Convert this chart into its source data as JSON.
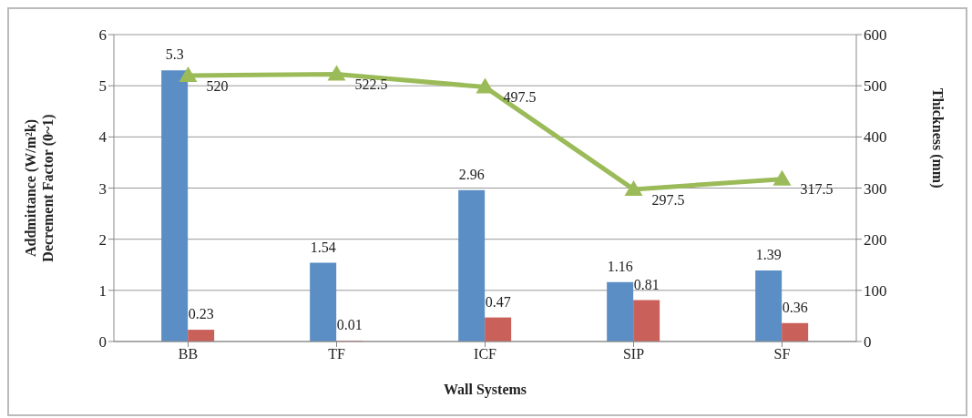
{
  "chart_data": {
    "type": "bar",
    "xlabel": "Wall Systems",
    "ylabel": "Addmittance (W/m²k)\nDecrement Factor (0~1)",
    "y2label": "Thickness (mm)",
    "categories": [
      "BB",
      "TF",
      "ICF",
      "SIP",
      "SF"
    ],
    "series": [
      {
        "color": "#5b8ec4",
        "values": [
          5.3,
          1.54,
          2.96,
          1.16,
          1.39
        ]
      },
      {
        "color": "#c9605a",
        "values": [
          0.23,
          0.01,
          0.47,
          0.81,
          0.36
        ]
      },
      {
        "type": "line",
        "axis": "y2",
        "color": "#9bbb59",
        "marker": "triangle",
        "values": [
          520,
          522.5,
          497.5,
          297.5,
          317.5
        ]
      }
    ],
    "ylim": [
      0,
      6
    ],
    "yticks": [
      0,
      1,
      2,
      3,
      4,
      5,
      6
    ],
    "y2lim": [
      0,
      600
    ],
    "y2ticks": [
      0,
      100,
      200,
      300,
      400,
      500,
      600
    ],
    "grid": "y",
    "legend": false,
    "data_labels": true
  }
}
